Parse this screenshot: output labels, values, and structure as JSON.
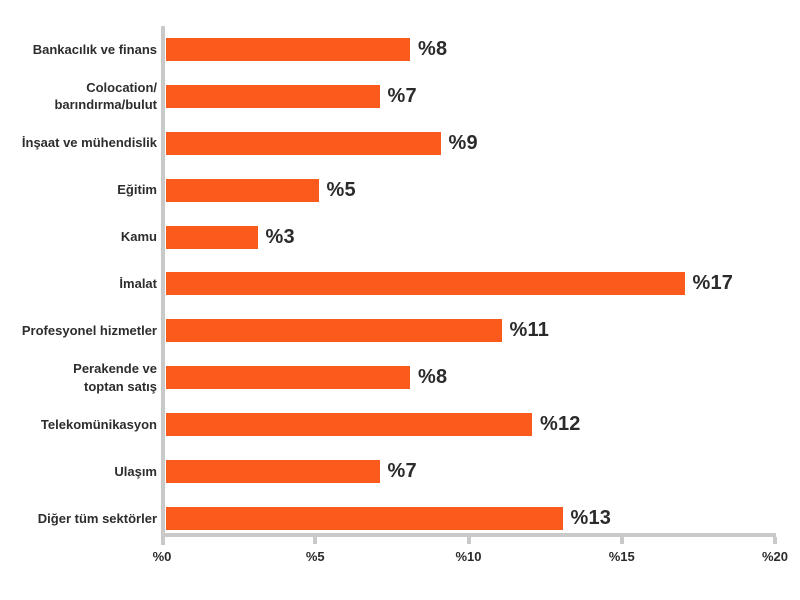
{
  "chart_data": {
    "type": "bar",
    "orientation": "horizontal",
    "title": "",
    "categories": [
      "Bankacılık ve finans",
      "Colocation/\nbarındırma/bulut",
      "İnşaat ve mühendislik",
      "Eğitim",
      "Kamu",
      "İmalat",
      "Profesyonel hizmetler",
      "Perakende ve\ntoptan satış",
      "Telekomünikasyon",
      "Ulaşım",
      "Diğer tüm sektörler"
    ],
    "values": [
      8,
      7,
      9,
      5,
      3,
      17,
      11,
      8,
      12,
      7,
      13
    ],
    "value_labels": [
      "%8",
      "%7",
      "%9",
      "%5",
      "%3",
      "%17",
      "%11",
      "%8",
      "%12",
      "%7",
      "%13"
    ],
    "xlim": [
      0,
      20
    ],
    "xticks": [
      0,
      5,
      10,
      15,
      20
    ],
    "xtick_labels": [
      "%0",
      "%5",
      "%10",
      "%15",
      "%20"
    ],
    "grid": false,
    "legend": false,
    "colors": {
      "bar": "#FA5B1D",
      "text": "#2B2B2B",
      "category_text": "#2D2D2D",
      "axis": "#C9C9C9",
      "background": "#FFFFFF"
    }
  }
}
